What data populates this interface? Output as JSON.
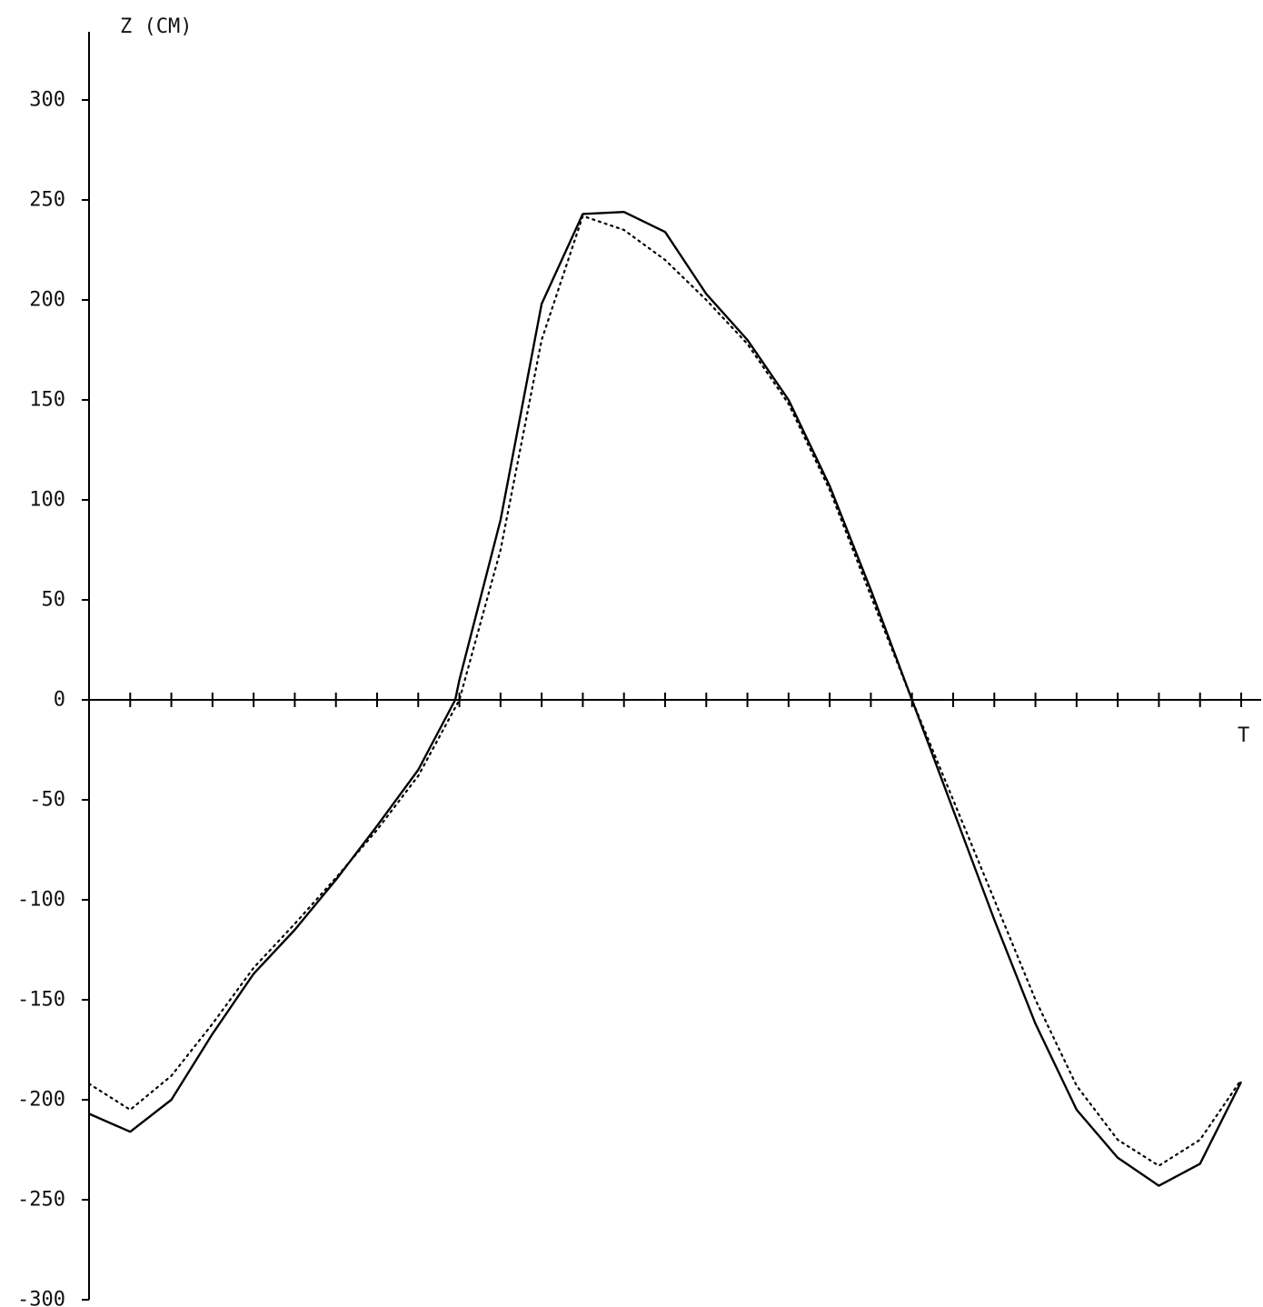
{
  "chart_data": {
    "type": "line",
    "title": "",
    "ylabel": "Z (CM)",
    "xlabel": "T",
    "ylim": [
      -300,
      300
    ],
    "yticks": [
      300,
      250,
      200,
      150,
      100,
      50,
      0,
      -50,
      -100,
      -150,
      -200,
      -250,
      -300
    ],
    "ytick_labels": [
      "300",
      "250",
      "200",
      "150",
      "100",
      "50",
      "0",
      "-50",
      "-100",
      "-150",
      "-200",
      "-250",
      "-300"
    ],
    "x_ticks_count": 28,
    "grid": false,
    "legend": "none",
    "colors": {
      "line": "#000000"
    },
    "series": [
      {
        "style": "solid",
        "points": [
          [
            0.0,
            -207
          ],
          [
            1.0,
            -216
          ],
          [
            2.0,
            -200
          ],
          [
            3.0,
            -167
          ],
          [
            4.0,
            -137
          ],
          [
            5.0,
            -115
          ],
          [
            6.0,
            -90
          ],
          [
            7.0,
            -63
          ],
          [
            8.0,
            -35
          ],
          [
            8.9,
            0
          ],
          [
            9.0,
            10
          ],
          [
            10.0,
            90
          ],
          [
            11.0,
            198
          ],
          [
            12.0,
            243
          ],
          [
            13.0,
            244
          ],
          [
            14.0,
            234
          ],
          [
            15.0,
            203
          ],
          [
            16.0,
            180
          ],
          [
            17.0,
            150
          ],
          [
            18.0,
            107
          ],
          [
            19.0,
            55
          ],
          [
            20.0,
            0
          ],
          [
            21.0,
            -55
          ],
          [
            22.0,
            -110
          ],
          [
            23.0,
            -162
          ],
          [
            24.0,
            -205
          ],
          [
            25.0,
            -229
          ],
          [
            26.0,
            -243
          ],
          [
            27.0,
            -232
          ],
          [
            28.0,
            -191
          ]
        ]
      },
      {
        "style": "dotted",
        "points": [
          [
            0.0,
            -192
          ],
          [
            1.0,
            -205
          ],
          [
            2.0,
            -188
          ],
          [
            3.0,
            -162
          ],
          [
            4.0,
            -134
          ],
          [
            5.0,
            -112
          ],
          [
            6.0,
            -89
          ],
          [
            7.0,
            -65
          ],
          [
            8.0,
            -38
          ],
          [
            9.0,
            0
          ],
          [
            10.0,
            75
          ],
          [
            11.0,
            180
          ],
          [
            12.0,
            242
          ],
          [
            13.0,
            235
          ],
          [
            14.0,
            220
          ],
          [
            15.0,
            200
          ],
          [
            16.0,
            178
          ],
          [
            17.0,
            148
          ],
          [
            18.0,
            105
          ],
          [
            19.0,
            52
          ],
          [
            20.0,
            0
          ],
          [
            21.0,
            -50
          ],
          [
            22.0,
            -100
          ],
          [
            23.0,
            -150
          ],
          [
            24.0,
            -193
          ],
          [
            25.0,
            -220
          ],
          [
            26.0,
            -233
          ],
          [
            27.0,
            -220
          ],
          [
            28.0,
            -190
          ]
        ]
      }
    ]
  }
}
